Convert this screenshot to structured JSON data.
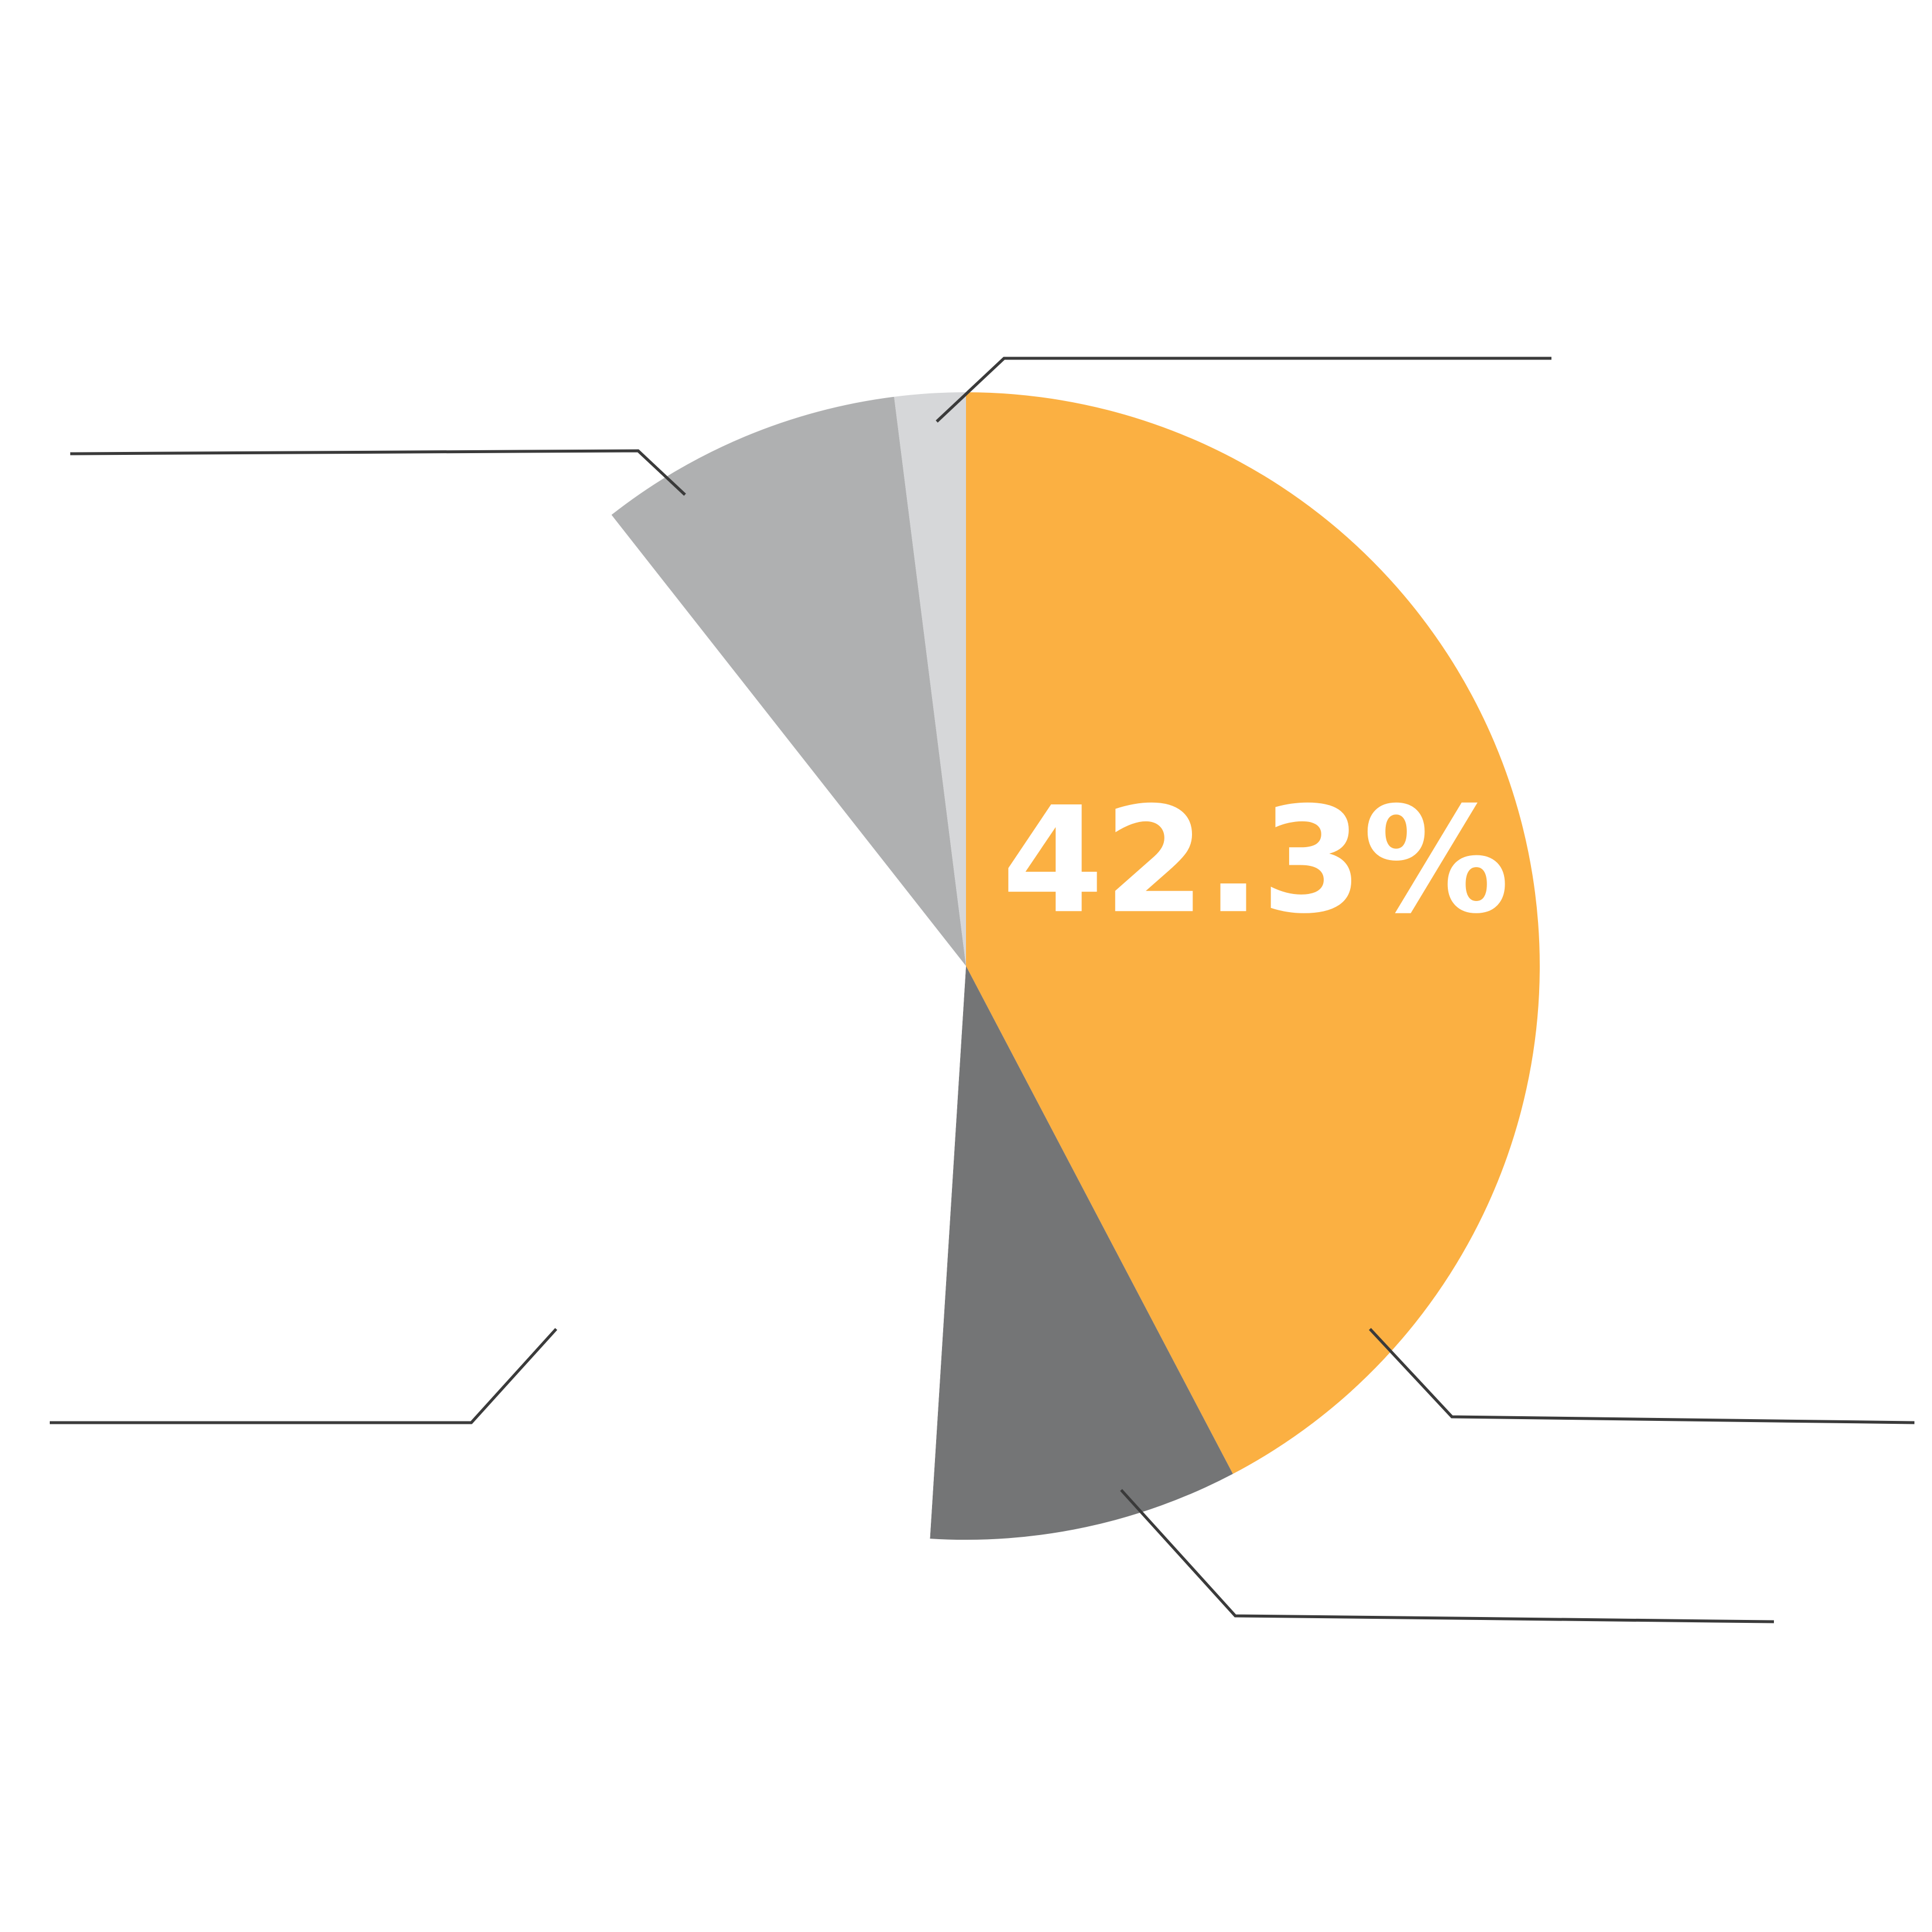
{
  "chart_data": {
    "type": "pie",
    "start_angle_deg": 0,
    "direction": "clockwise",
    "slices": [
      {
        "value": 42.3,
        "color": "#FBB042",
        "label": "42.3%"
      },
      {
        "value": 8.7,
        "color": "#747576",
        "label": ""
      },
      {
        "value": 38.4,
        "color": "#FFFFFF",
        "label": ""
      },
      {
        "value": 8.6,
        "color": "#AFB0B1",
        "label": ""
      },
      {
        "value": 2.0,
        "color": "#D6D7D9",
        "label": ""
      }
    ],
    "title": "",
    "legend": "none"
  }
}
